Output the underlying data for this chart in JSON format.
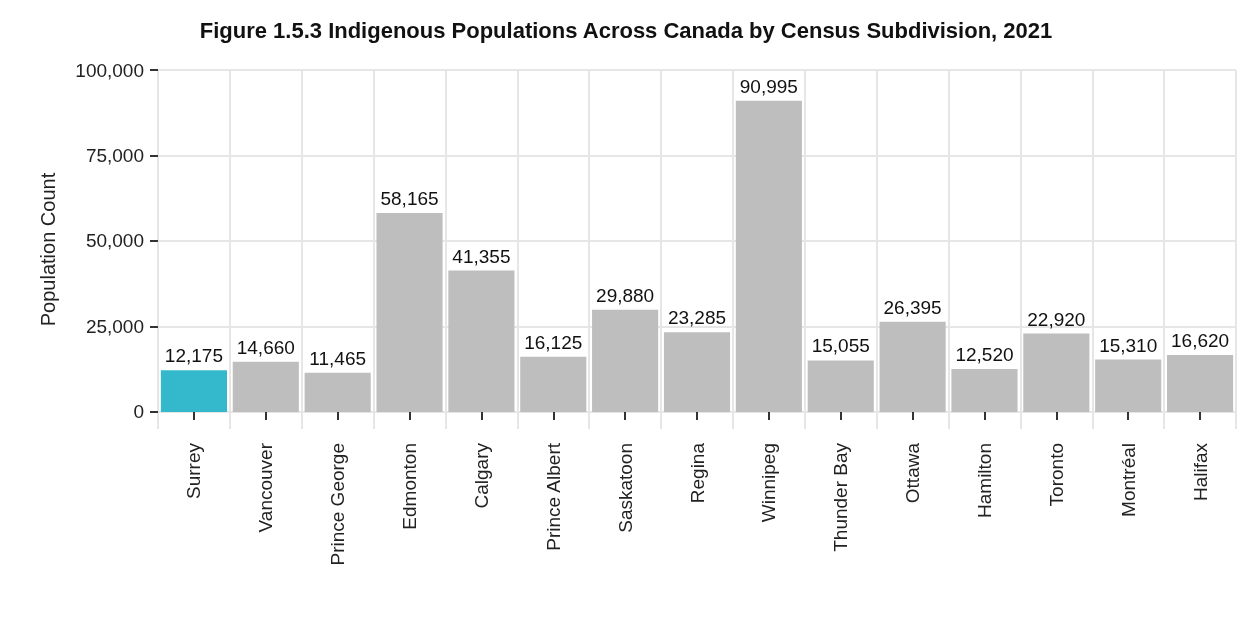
{
  "chart_data": {
    "type": "bar",
    "title": "Figure 1.5.3 Indigenous Populations Across Canada by Census Subdivision, 2021",
    "ylabel": "Population Count",
    "categories": [
      "Surrey",
      "Vancouver",
      "Prince George",
      "Edmonton",
      "Calgary",
      "Prince Albert",
      "Saskatoon",
      "Regina",
      "Winnipeg",
      "Thunder Bay",
      "Ottawa",
      "Hamilton",
      "Toronto",
      "Montréal",
      "Halifax"
    ],
    "values": [
      12175,
      14660,
      11465,
      58165,
      41355,
      16125,
      29880,
      23285,
      90995,
      15055,
      26395,
      12520,
      22920,
      15310,
      16620
    ],
    "colors": [
      "#33b8cc",
      "#bebebe",
      "#bebebe",
      "#bebebe",
      "#bebebe",
      "#bebebe",
      "#bebebe",
      "#bebebe",
      "#bebebe",
      "#bebebe",
      "#bebebe",
      "#bebebe",
      "#bebebe",
      "#bebebe",
      "#bebebe"
    ],
    "value_labels": [
      "12,175",
      "14,660",
      "11,465",
      "58,165",
      "41,355",
      "16,125",
      "29,880",
      "23,285",
      "90,995",
      "15,055",
      "26,395",
      "12,520",
      "22,920",
      "15,310",
      "16,620"
    ],
    "ylim": [
      -5000,
      100000
    ],
    "yticks": [
      0,
      {
        "value": 25000,
        "label": "25,000"
      },
      {
        "value": 50000,
        "label": "50,000"
      },
      {
        "value": 75000,
        "label": "75,000"
      },
      {
        "value": 100000,
        "label": "100,000"
      }
    ],
    "grid": true
  }
}
